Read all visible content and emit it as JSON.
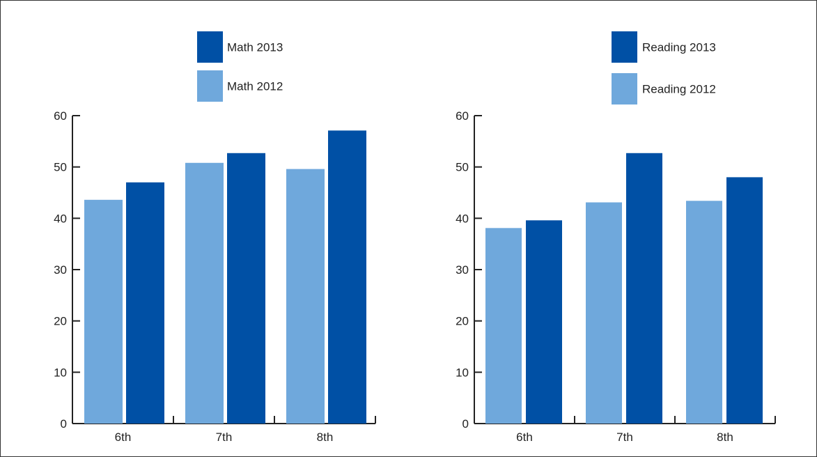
{
  "chart_data": [
    {
      "type": "bar",
      "categories": [
        "6th",
        "7th",
        "8th"
      ],
      "series": [
        {
          "name": "Math 2012",
          "values": [
            43.6,
            50.8,
            49.6
          ],
          "color": "#6fa8dc"
        },
        {
          "name": "Math 2013",
          "values": [
            47.0,
            52.7,
            57.1
          ],
          "color": "#0050a5"
        }
      ],
      "legend": [
        {
          "label": "Math 2013",
          "color": "#0050a5"
        },
        {
          "label": "Math 2012",
          "color": "#6fa8dc"
        }
      ],
      "legend_position": "top",
      "yticks": [
        0,
        10,
        20,
        30,
        40,
        50,
        60
      ],
      "ylim": [
        0,
        60
      ],
      "title": "",
      "xlabel": "",
      "ylabel": "",
      "grid": false
    },
    {
      "type": "bar",
      "categories": [
        "6th",
        "7th",
        "8th"
      ],
      "series": [
        {
          "name": "Reading 2012",
          "values": [
            38.1,
            43.1,
            43.4
          ],
          "color": "#6fa8dc"
        },
        {
          "name": "Reading 2013",
          "values": [
            39.6,
            52.7,
            48.0
          ],
          "color": "#0050a5"
        }
      ],
      "legend": [
        {
          "label": "Reading 2013",
          "color": "#0050a5"
        },
        {
          "label": "Reading 2012",
          "color": "#6fa8dc"
        }
      ],
      "legend_position": "top",
      "yticks": [
        0,
        10,
        20,
        30,
        40,
        50,
        60
      ],
      "ylim": [
        0,
        60
      ],
      "title": "",
      "xlabel": "",
      "ylabel": "",
      "grid": false
    }
  ]
}
